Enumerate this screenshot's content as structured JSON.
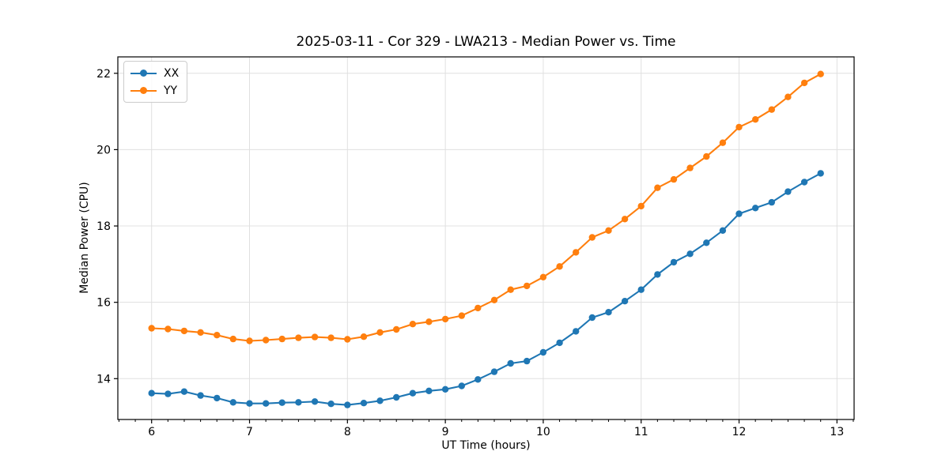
{
  "chart_data": {
    "type": "line",
    "title": "2025-03-11 - Cor 329 - LWA213 - Median Power vs. Time",
    "xlabel": "UT Time (hours)",
    "ylabel": "Median Power (CPU)",
    "xlim": [
      5.655,
      13.175
    ],
    "ylim": [
      12.93,
      22.43
    ],
    "x_major_ticks": [
      6,
      7,
      8,
      9,
      10,
      11,
      12,
      13
    ],
    "x_tick_labels": [
      "6",
      "7",
      "8",
      "9",
      "10",
      "11",
      "12",
      "13"
    ],
    "x_minor_tick_step": 0.1666667,
    "y_major_ticks": [
      14,
      16,
      18,
      20,
      22
    ],
    "y_tick_labels": [
      "14",
      "16",
      "18",
      "20",
      "22"
    ],
    "grid": "on",
    "legend": {
      "position": "upper-left",
      "entries": [
        "XX",
        "YY"
      ]
    },
    "axis_colors": {
      "spine": "#000000",
      "grid": "#e0e0e0",
      "tick_label": "#000000"
    },
    "x": [
      6,
      6.167,
      6.333,
      6.5,
      6.667,
      6.833,
      7,
      7.167,
      7.333,
      7.5,
      7.667,
      7.833,
      8,
      8.167,
      8.333,
      8.5,
      8.667,
      8.833,
      9,
      9.167,
      9.333,
      9.5,
      9.667,
      9.833,
      10,
      10.167,
      10.333,
      10.5,
      10.667,
      10.833,
      11,
      11.167,
      11.333,
      11.5,
      11.667,
      11.833,
      12,
      12.167,
      12.333,
      12.5,
      12.667,
      12.833
    ],
    "series": [
      {
        "name": "XX",
        "color": "#1f77b4",
        "marker": "circle",
        "values": [
          13.62,
          13.6,
          13.66,
          13.56,
          13.49,
          13.38,
          13.35,
          13.35,
          13.37,
          13.38,
          13.4,
          13.34,
          13.31,
          13.36,
          13.42,
          13.51,
          13.62,
          13.68,
          13.72,
          13.81,
          13.98,
          14.18,
          14.4,
          14.46,
          14.69,
          14.94,
          15.24,
          15.6,
          15.74,
          16.03,
          16.33,
          16.73,
          17.05,
          17.27,
          17.56,
          17.88,
          18.32,
          18.47,
          18.62,
          18.9,
          19.15,
          19.38
        ]
      },
      {
        "name": "YY",
        "color": "#ff7f0e",
        "marker": "circle",
        "values": [
          15.32,
          15.3,
          15.25,
          15.21,
          15.14,
          15.04,
          14.99,
          15.01,
          15.04,
          15.07,
          15.09,
          15.07,
          15.03,
          15.1,
          15.21,
          15.29,
          15.43,
          15.49,
          15.56,
          15.65,
          15.85,
          16.06,
          16.33,
          16.43,
          16.66,
          16.94,
          17.31,
          17.7,
          17.88,
          18.18,
          18.52,
          19.0,
          19.22,
          19.52,
          19.82,
          20.18,
          20.59,
          20.79,
          21.05,
          21.38,
          21.75,
          21.98
        ]
      }
    ]
  }
}
